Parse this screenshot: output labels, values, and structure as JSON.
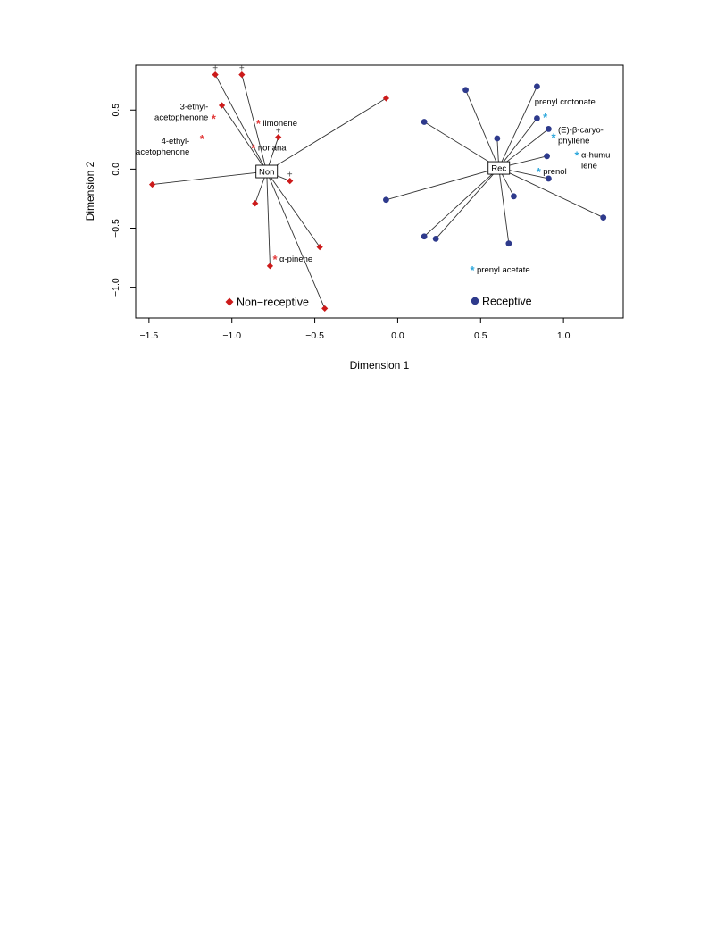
{
  "chart_data": {
    "type": "scatter",
    "title": "",
    "xlabel": "Dimension 1",
    "ylabel": "Dimension 2",
    "xlim": [
      -1.58,
      1.36
    ],
    "ylim": [
      -1.26,
      0.88
    ],
    "xticks": [
      -1.5,
      -1.0,
      -0.5,
      0.0,
      0.5,
      1.0
    ],
    "xtick_labels": [
      "−1.5",
      "−1.0",
      "−0.5",
      "0.0",
      "0.5",
      "1.0"
    ],
    "yticks": [
      -1.0,
      -0.5,
      0.0,
      0.5
    ],
    "ytick_labels": [
      "−1.0",
      "−0.5",
      "0.0",
      "0.5"
    ],
    "grid": false,
    "legend_position": "bottom-center",
    "series": [
      {
        "name": "Non−receptive",
        "marker": "diamond",
        "color": "#cc1a1a",
        "centroid": {
          "label": "Non",
          "x": -0.79,
          "y": -0.02
        },
        "points": [
          {
            "x": -1.1,
            "y": 0.8,
            "plus": true
          },
          {
            "x": -0.94,
            "y": 0.8,
            "plus": true
          },
          {
            "x": -1.06,
            "y": 0.54,
            "plus": false
          },
          {
            "x": -0.72,
            "y": 0.27,
            "plus": true
          },
          {
            "x": -0.07,
            "y": 0.6,
            "plus": false
          },
          {
            "x": -1.48,
            "y": -0.13,
            "plus": false
          },
          {
            "x": -0.65,
            "y": -0.1,
            "plus": true
          },
          {
            "x": -0.86,
            "y": -0.29,
            "plus": false
          },
          {
            "x": -0.47,
            "y": -0.66,
            "plus": false
          },
          {
            "x": -0.77,
            "y": -0.82,
            "plus": false
          },
          {
            "x": -0.44,
            "y": -1.18,
            "plus": false
          }
        ]
      },
      {
        "name": "Receptive",
        "marker": "circle",
        "color": "#2e3a8c",
        "centroid": {
          "label": "Rec",
          "x": 0.61,
          "y": 0.01
        },
        "points": [
          {
            "x": 0.41,
            "y": 0.67
          },
          {
            "x": 0.84,
            "y": 0.7
          },
          {
            "x": 0.16,
            "y": 0.4
          },
          {
            "x": 0.84,
            "y": 0.43
          },
          {
            "x": 0.91,
            "y": 0.34
          },
          {
            "x": 0.6,
            "y": 0.26
          },
          {
            "x": 0.9,
            "y": 0.11
          },
          {
            "x": 0.91,
            "y": -0.08
          },
          {
            "x": -0.07,
            "y": -0.26
          },
          {
            "x": 0.7,
            "y": -0.23
          },
          {
            "x": 1.24,
            "y": -0.41
          },
          {
            "x": 0.16,
            "y": -0.57
          },
          {
            "x": 0.23,
            "y": -0.59
          },
          {
            "x": 0.67,
            "y": -0.63
          }
        ]
      }
    ],
    "compounds": [
      {
        "label": "3-ethyl-",
        "label2": "acetophenone",
        "x": -1.11,
        "y": 0.43,
        "color": "#e23b3b",
        "side": "left"
      },
      {
        "label": "4-ethyl-",
        "label2": "acetophenone",
        "x": -1.18,
        "y": 0.26,
        "color": "#e23b3b",
        "side": "left-below"
      },
      {
        "label": "limonene",
        "label2": "",
        "x": -0.84,
        "y": 0.39,
        "color": "#e23b3b",
        "side": "right"
      },
      {
        "label": "nonanal",
        "label2": "",
        "x": -0.87,
        "y": 0.18,
        "color": "#e23b3b",
        "side": "right"
      },
      {
        "label": "α-pinene",
        "label2": "",
        "x": -0.74,
        "y": -0.76,
        "color": "#e23b3b",
        "side": "right"
      },
      {
        "label": "prenyl crotonate",
        "label2": "",
        "x": 0.89,
        "y": 0.44,
        "color": "#2fa8dc",
        "side": "above"
      },
      {
        "label": "(E)-β-caryo-",
        "label2": "phyllene",
        "x": 0.94,
        "y": 0.27,
        "color": "#2fa8dc",
        "side": "right-above"
      },
      {
        "label": "α-humu",
        "label2": "lene",
        "x": 1.08,
        "y": 0.12,
        "color": "#2fa8dc",
        "side": "right"
      },
      {
        "label": "prenol",
        "label2": "",
        "x": 0.85,
        "y": -0.02,
        "color": "#2fa8dc",
        "side": "right"
      },
      {
        "label": "prenyl acetate",
        "label2": "",
        "x": 0.45,
        "y": -0.85,
        "color": "#2fa8dc",
        "side": "right"
      }
    ]
  }
}
